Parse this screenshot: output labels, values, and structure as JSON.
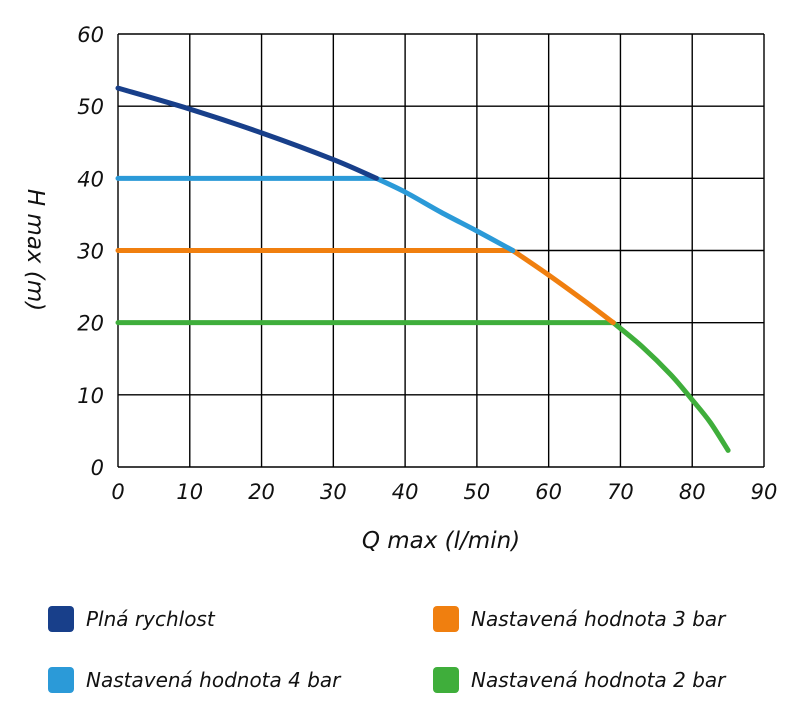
{
  "chart_data": {
    "type": "line",
    "xlabel": "Q max (l/min)",
    "ylabel": "H max (m)",
    "xlim": [
      0,
      90
    ],
    "ylim": [
      0,
      60
    ],
    "xticks": [
      "0",
      "10",
      "20",
      "30",
      "40",
      "50",
      "60",
      "70",
      "80",
      "90"
    ],
    "yticks": [
      "0",
      "10",
      "20",
      "30",
      "40",
      "50",
      "60"
    ],
    "grid": true,
    "legend_position": "bottom",
    "series": [
      {
        "name": "Plná rychlost",
        "color": "#183f8a",
        "x": [
          0,
          10,
          20,
          30,
          36
        ],
        "y": [
          52.5,
          49.6,
          46.3,
          42.6,
          40
        ]
      },
      {
        "name": "Nastavená hodnota 4 bar",
        "color": "#2b9ad8",
        "x": [
          0,
          36,
          40,
          45,
          50,
          55
        ],
        "y": [
          40,
          40,
          38.1,
          35.3,
          32.7,
          30
        ]
      },
      {
        "name": "Nastavená hodnota 3 bar",
        "color": "#f07f0f",
        "x": [
          0,
          55,
          60,
          65,
          69
        ],
        "y": [
          30,
          30,
          26.6,
          23.0,
          20
        ]
      },
      {
        "name": "Nastavená hodnota 2 bar",
        "color": "#3fae3b",
        "x": [
          0,
          69,
          73,
          77,
          80,
          82.5,
          85
        ],
        "y": [
          20,
          20,
          16.7,
          12.8,
          9.3,
          6.2,
          2.3
        ]
      }
    ]
  }
}
